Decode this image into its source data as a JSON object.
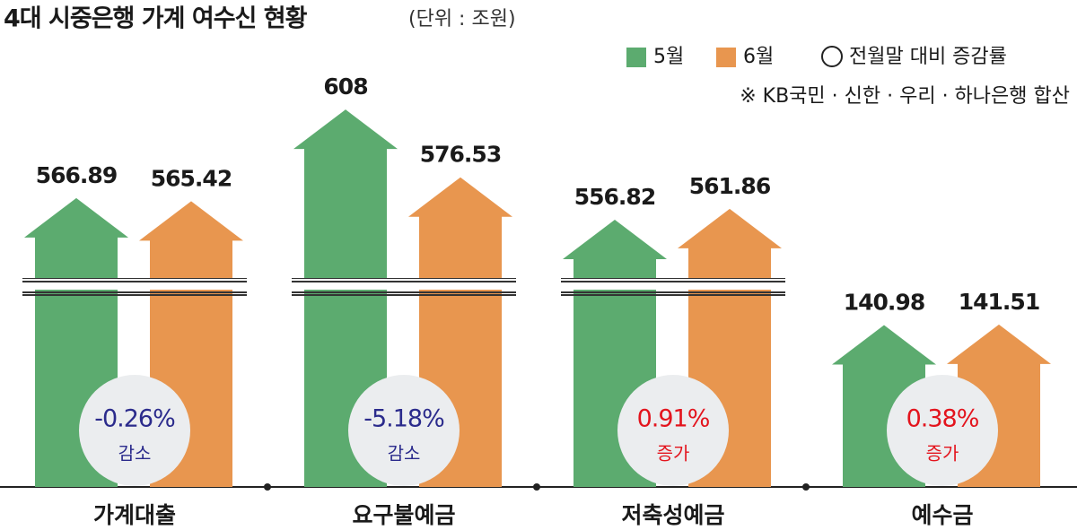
{
  "chart_data": {
    "type": "bar",
    "title": "4대 시중은행 가계 여수신 현황",
    "subtitle": "(단위 : 조원)",
    "note": "※ KB국민 · 신한 · 우리 · 하나은행 합산",
    "categories": [
      "가계대출",
      "요구불예금",
      "저축성예금",
      "예수금"
    ],
    "series": [
      {
        "name": "5월",
        "color": "#5cab6f",
        "values": [
          566.89,
          608,
          556.82,
          140.98
        ]
      },
      {
        "name": "6월",
        "color": "#e8964f",
        "values": [
          565.42,
          576.53,
          561.86,
          141.51
        ]
      }
    ],
    "change": {
      "name": "전월말 대비 증감률",
      "values": [
        -0.26,
        -5.18,
        0.91,
        0.38
      ],
      "value_labels": [
        "-0.26%",
        "-5.18%",
        "0.91%",
        "0.38%"
      ],
      "notes": [
        "감소",
        "감소",
        "증가",
        "증가"
      ]
    },
    "axis_break": true
  }
}
